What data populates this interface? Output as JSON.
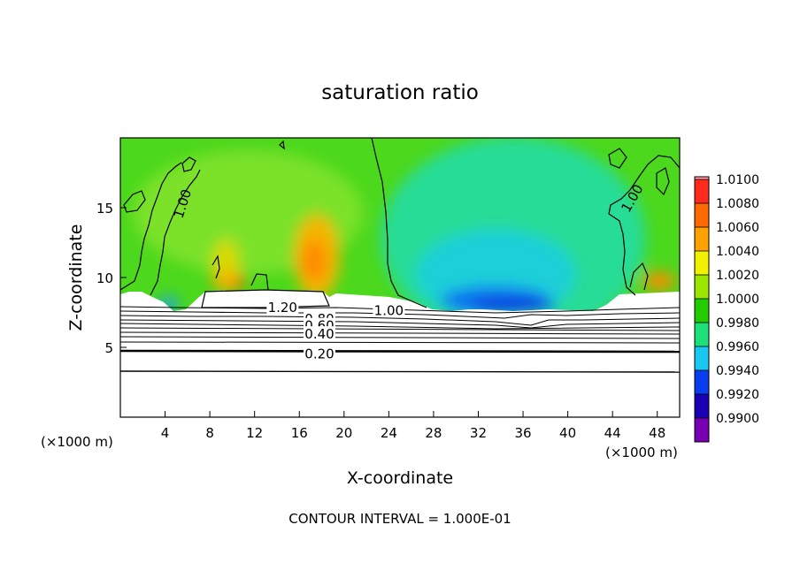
{
  "chart_data": {
    "type": "heatmap",
    "title": "saturation ratio",
    "xlabel": "X-coordinate",
    "ylabel": "Z-coordinate",
    "x_unit_note": "(×1000 m)",
    "x_unit_note_right": "(×1000 m)",
    "xlim": [
      0,
      50
    ],
    "ylim": [
      0,
      20
    ],
    "xticks": [
      4,
      8,
      12,
      16,
      20,
      24,
      28,
      32,
      36,
      40,
      44,
      48
    ],
    "yticks": [
      5,
      10,
      15
    ],
    "grid": false,
    "footer": "CONTOUR INTERVAL = 1.000E-01",
    "colorbar": {
      "levels": [
        "1.0100",
        "1.0080",
        "1.0060",
        "1.0040",
        "1.0020",
        "1.0000",
        "0.9980",
        "0.9960",
        "0.9940",
        "0.9920",
        "0.9900"
      ],
      "colors": [
        "#ff9aa8",
        "#ff2a1e",
        "#ff6a00",
        "#ffa200",
        "#f2f200",
        "#9ae600",
        "#22cc00",
        "#1ee07a",
        "#18c8f0",
        "#0a3cf0",
        "#1a00b4",
        "#7800b4"
      ]
    },
    "contour_labels": [
      {
        "text": "1.00",
        "x": 5.5,
        "y": 15.3,
        "rotate": -72
      },
      {
        "text": "1.00",
        "x": 45.7,
        "y": 15.7,
        "rotate": -60
      },
      {
        "text": "1.20",
        "x": 14.5,
        "y": 7.9,
        "rotate": 0
      },
      {
        "text": "1.00",
        "x": 24.0,
        "y": 7.7,
        "rotate": 0
      },
      {
        "text": "0.80",
        "x": 17.8,
        "y": 7.1,
        "rotate": 0
      },
      {
        "text": "0.60",
        "x": 17.8,
        "y": 6.6,
        "rotate": 0
      },
      {
        "text": "0.40",
        "x": 17.8,
        "y": 6.0,
        "rotate": 0
      },
      {
        "text": "0.20",
        "x": 17.8,
        "y": 4.6,
        "rotate": 0
      }
    ]
  }
}
